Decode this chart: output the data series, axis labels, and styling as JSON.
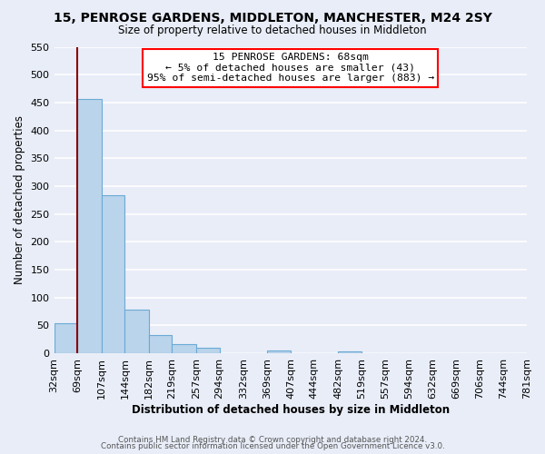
{
  "title_main": "15, PENROSE GARDENS, MIDDLETON, MANCHESTER, M24 2SY",
  "title_sub": "Size of property relative to detached houses in Middleton",
  "xlabel": "Distribution of detached houses by size in Middleton",
  "ylabel": "Number of detached properties",
  "bar_edges": [
    32,
    69,
    107,
    144,
    182,
    219,
    257,
    294,
    332,
    369,
    407,
    444,
    482,
    519,
    557,
    594,
    632,
    669,
    706,
    744,
    781
  ],
  "bar_heights": [
    53,
    457,
    284,
    78,
    32,
    17,
    10,
    0,
    0,
    5,
    0,
    0,
    3,
    0,
    0,
    0,
    0,
    0,
    0,
    0
  ],
  "bar_color": "#bad4eb",
  "bar_edge_color": "#6aaad4",
  "property_line_x": 69,
  "annotation_text_line1": "15 PENROSE GARDENS: 68sqm",
  "annotation_text_line2": "← 5% of detached houses are smaller (43)",
  "annotation_text_line3": "95% of semi-detached houses are larger (883) →",
  "ylim": [
    0,
    550
  ],
  "yticks": [
    0,
    50,
    100,
    150,
    200,
    250,
    300,
    350,
    400,
    450,
    500,
    550
  ],
  "footnote1": "Contains HM Land Registry data © Crown copyright and database right 2024.",
  "footnote2": "Contains public sector information licensed under the Open Government Licence v3.0.",
  "bg_color": "#e8edf8",
  "plot_bg_color": "#e8edf8",
  "grid_color": "#ffffff"
}
